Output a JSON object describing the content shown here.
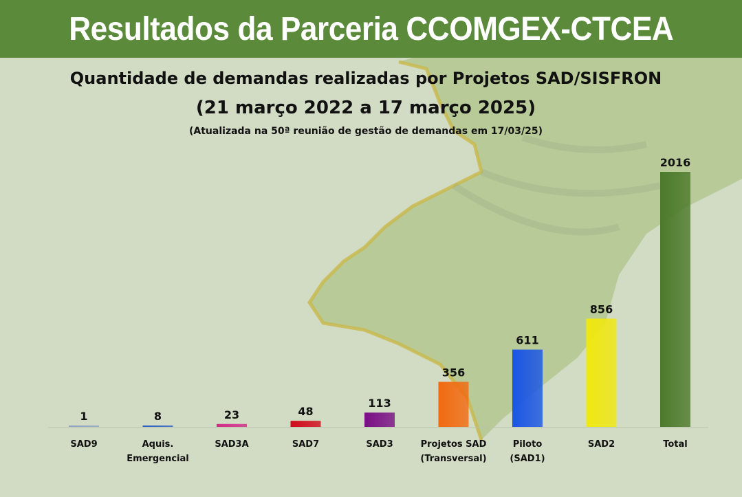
{
  "banner": {
    "title": "Resultados da Parceria CCOMGEX-CTCEA"
  },
  "chart_data": {
    "type": "bar",
    "title": "Quantidade de demandas realizadas por Projetos SAD/SISFRON",
    "subtitle": "(21 março 2022 a 17 março 2025)",
    "note": "(Atualizada na 50ª reunião de gestão de demandas em 17/03/25)",
    "categories": [
      [
        "SAD9"
      ],
      [
        "Aquis.",
        "Emergencial"
      ],
      [
        "SAD3A"
      ],
      [
        "SAD7"
      ],
      [
        "SAD3"
      ],
      [
        "Projetos SAD",
        "(Transversal)"
      ],
      [
        "Piloto",
        "(SAD1)"
      ],
      [
        "SAD2"
      ],
      [
        "Total"
      ]
    ],
    "values": [
      1,
      8,
      23,
      48,
      113,
      356,
      611,
      856,
      2016
    ],
    "colors": [
      "#8da3c4",
      "#2a5fc2",
      "#d02c85",
      "#d10b1b",
      "#7a0f85",
      "#f26a10",
      "#1a55e5",
      "#efe810",
      "#4c7a2b"
    ],
    "ylim": [
      0,
      2016
    ],
    "grid": false,
    "legend": false
  }
}
